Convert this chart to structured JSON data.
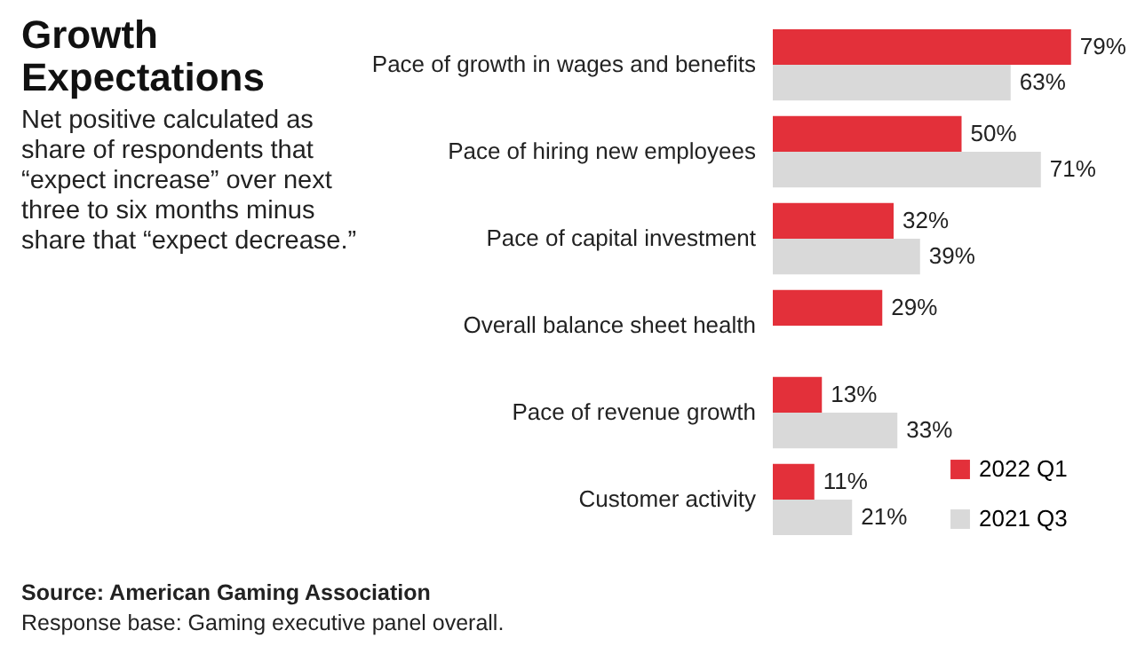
{
  "chart_data": {
    "type": "bar",
    "orientation": "horizontal",
    "title": "Growth Expectations",
    "subtitle": "Net positive calculated as share of respondents that “expect increase” over next three to six months minus share that “expect decrease.”",
    "categories": [
      "Pace of growth in wages and benefits",
      "Pace of hiring new employees",
      "Pace of capital investment",
      "Overall balance sheet health",
      "Pace of revenue growth",
      "Customer activity"
    ],
    "series": [
      {
        "name": "2022 Q1",
        "color": "#e3303a",
        "values": [
          79,
          50,
          32,
          29,
          13,
          11
        ],
        "value_labels": [
          "79%",
          "50%",
          "32%",
          "29%",
          "13%",
          "11%"
        ]
      },
      {
        "name": "2021 Q3",
        "color": "#d9d9d9",
        "values": [
          63,
          71,
          39,
          null,
          33,
          21
        ],
        "value_labels": [
          "63%",
          "71%",
          "39%",
          null,
          "33%",
          "21%"
        ]
      }
    ],
    "tick_labels": "y",
    "legend": "bottom right",
    "annotations": [
      "Source: American Gaming Association",
      "Response base: Gaming executive panel overall."
    ]
  }
}
